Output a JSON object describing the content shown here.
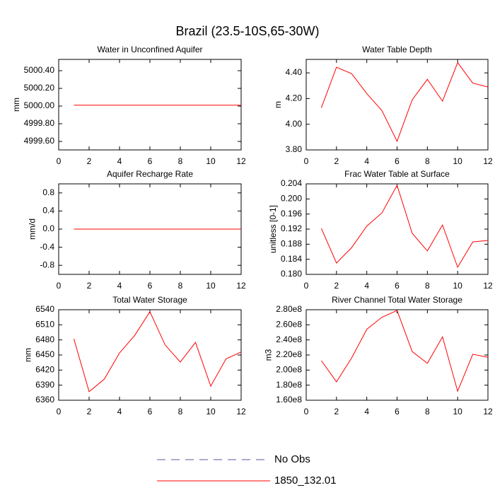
{
  "title": "Brazil (23.5-10S,65-30W)",
  "legend": [
    {
      "name": "No Obs",
      "color": "#5a5aa0",
      "dashed": true
    },
    {
      "name": "1850_132.01",
      "color": "#ff0000",
      "dashed": false
    }
  ],
  "chart_data": [
    {
      "type": "line",
      "title": "Water in Unconfined Aquifer",
      "y_label": "mm",
      "color": "#ff0000",
      "x": [
        1,
        2,
        3,
        4,
        5,
        6,
        7,
        8,
        9,
        10,
        11,
        12
      ],
      "values": [
        5000.01,
        5000.01,
        5000.01,
        5000.01,
        5000.01,
        5000.01,
        5000.01,
        5000.01,
        5000.01,
        5000.01,
        5000.01,
        5000.01
      ],
      "xlim": [
        0,
        12
      ],
      "xticks": [
        0,
        2,
        4,
        6,
        8,
        10,
        12
      ],
      "ylim": [
        4999.504,
        5000.528
      ],
      "yticks": [
        {
          "value": 4999.6,
          "label": "4999.60"
        },
        {
          "value": 4999.8,
          "label": "4999.80"
        },
        {
          "value": 5000,
          "label": "5000.00"
        },
        {
          "value": 5000.2,
          "label": "5000.20"
        },
        {
          "value": 5000.4,
          "label": "5000.40"
        }
      ]
    },
    {
      "type": "line",
      "title": "Water Table Depth",
      "y_label": "m",
      "color": "#ff0000",
      "x": [
        1,
        2,
        3,
        4,
        5,
        6,
        7,
        8,
        9,
        10,
        11,
        12
      ],
      "values": [
        4.128,
        4.444,
        4.394,
        4.239,
        4.106,
        3.867,
        4.19,
        4.35,
        4.18,
        4.48,
        4.32,
        4.29
      ],
      "xlim": [
        0,
        12
      ],
      "xticks": [
        0,
        2,
        4,
        6,
        8,
        10,
        12
      ],
      "ylim": [
        3.8,
        4.505
      ],
      "yticks": [
        {
          "value": 3.8,
          "label": "3.80"
        },
        {
          "value": 4,
          "label": "4.00"
        },
        {
          "value": 4.2,
          "label": "4.20"
        },
        {
          "value": 4.4,
          "label": "4.40"
        }
      ]
    },
    {
      "type": "line",
      "title": "Aquifer Recharge Rate",
      "y_label": "mm/d",
      "color": "#ff0000",
      "x": [
        1,
        2,
        3,
        4,
        5,
        6,
        7,
        8,
        9,
        10,
        11,
        12
      ],
      "values": [
        0,
        0,
        0,
        0,
        0,
        0,
        0,
        0,
        0,
        0,
        0,
        0
      ],
      "xlim": [
        0,
        12
      ],
      "xticks": [
        0,
        2,
        4,
        6,
        8,
        10,
        12
      ],
      "ylim": [
        -1,
        1
      ],
      "yticks": [
        -0.8,
        -0.4,
        {
          "value": 0,
          "label": "0.0"
        },
        0.4,
        0.8
      ]
    },
    {
      "type": "line",
      "title": "Frac Water Table at Surface",
      "y_label": "unitless [0-1]",
      "color": "#ff0000",
      "x": [
        1,
        2,
        3,
        4,
        5,
        6,
        7,
        8,
        9,
        10,
        11,
        12
      ],
      "values": [
        0.1922,
        0.183,
        0.1871,
        0.1928,
        0.1963,
        0.2036,
        0.1909,
        0.1862,
        0.1931,
        0.1819,
        0.1886,
        0.189
      ],
      "xlim": [
        0,
        12
      ],
      "xticks": [
        0,
        2,
        4,
        6,
        8,
        10,
        12
      ],
      "ylim": [
        0.18,
        0.204
      ],
      "yticks": [
        {
          "value": 0.18,
          "label": "0.180"
        },
        0.184,
        0.188,
        0.192,
        0.196,
        {
          "value": 0.2,
          "label": "0.200"
        },
        0.204
      ]
    },
    {
      "type": "line",
      "title": "Total Water Storage",
      "y_label": "mm",
      "color": "#ff0000",
      "x": [
        1,
        2,
        3,
        4,
        5,
        6,
        7,
        8,
        9,
        10,
        11,
        12
      ],
      "values": [
        6482,
        6377,
        6402,
        6454,
        6489,
        6536,
        6470,
        6436,
        6475,
        6388,
        6442,
        6456
      ],
      "xlim": [
        0,
        12
      ],
      "xticks": [
        0,
        2,
        4,
        6,
        8,
        10,
        12
      ],
      "ylim": [
        6360,
        6540
      ],
      "yticks": [
        6360,
        6390,
        6420,
        6450,
        6480,
        6510,
        6540
      ]
    },
    {
      "type": "line",
      "title": "River Channel Total Water Storage",
      "y_label": "m3",
      "color": "#ff0000",
      "x": [
        1,
        2,
        3,
        4,
        5,
        6,
        7,
        8,
        9,
        10,
        11,
        12
      ],
      "values": [
        212500000,
        184400000,
        216000000,
        254000000,
        270000000,
        279000000,
        224500000,
        209000000,
        244000000,
        172000000,
        221000000,
        217000000
      ],
      "xlim": [
        0,
        12
      ],
      "xticks": [
        0,
        2,
        4,
        6,
        8,
        10,
        12
      ],
      "ylim": [
        160000000,
        280000000
      ],
      "yticks": [
        {
          "value": 160000000,
          "label": "1.60e8"
        },
        {
          "value": 180000000,
          "label": "1.80e8"
        },
        {
          "value": 200000000,
          "label": "2.00e8"
        },
        {
          "value": 220000000,
          "label": "2.20e8"
        },
        {
          "value": 240000000,
          "label": "2.40e8"
        },
        {
          "value": 260000000,
          "label": "2.60e8"
        },
        {
          "value": 280000000,
          "label": "2.80e8"
        }
      ]
    }
  ]
}
